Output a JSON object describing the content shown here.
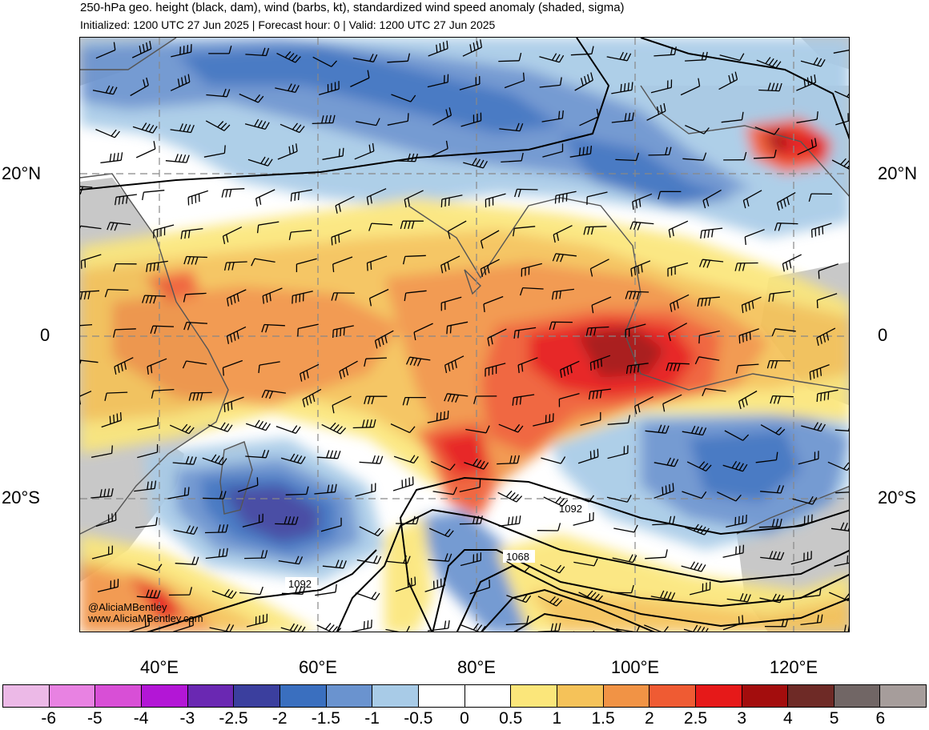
{
  "header": {
    "title": "250-hPa geo. height (black, dam), wind (barbs, kt), standardized wind speed anomaly (shaded, sigma)",
    "subtitle": "Initialized: 1200 UTC 27 Jun 2025 | Forecast hour: 0 | Valid: 1200 UTC 27 Jun 2025"
  },
  "map": {
    "lat_labels": {
      "n20": "20°N",
      "eq": "0",
      "s20": "20°S"
    },
    "lon_labels": [
      "40°E",
      "60°E",
      "80°E",
      "100°E",
      "120°E"
    ],
    "contour_labels": {
      "c1092_east": "1092",
      "c1068": "1068",
      "c1092_west": "1092"
    },
    "watermark": {
      "handle": "@AliciaMBentley",
      "site": "www.AliciaMBentley.com"
    }
  },
  "colorbar": {
    "colors": [
      "#ecb9e7",
      "#e882e2",
      "#d84fd6",
      "#b316d6",
      "#6a28b2",
      "#3b3f9e",
      "#3a6fbf",
      "#6a93cf",
      "#a8cbe7",
      "#ffffff",
      "#ffffff",
      "#fbe67a",
      "#f5c259",
      "#f19345",
      "#ef5b33",
      "#e61919",
      "#a30d0d",
      "#6e2a26",
      "#716665",
      "#a69d9b"
    ],
    "labels": [
      "-6",
      "-5",
      "-4",
      "-3",
      "-2.5",
      "-2",
      "-1.5",
      "-1",
      "-0.5",
      "0",
      "0.5",
      "1",
      "1.5",
      "2",
      "2.5",
      "3",
      "4",
      "5",
      "6"
    ]
  },
  "palette": {
    "land": "#c8c8c8",
    "coast": "#555555",
    "contour": "#000000",
    "grid": "#888888"
  }
}
